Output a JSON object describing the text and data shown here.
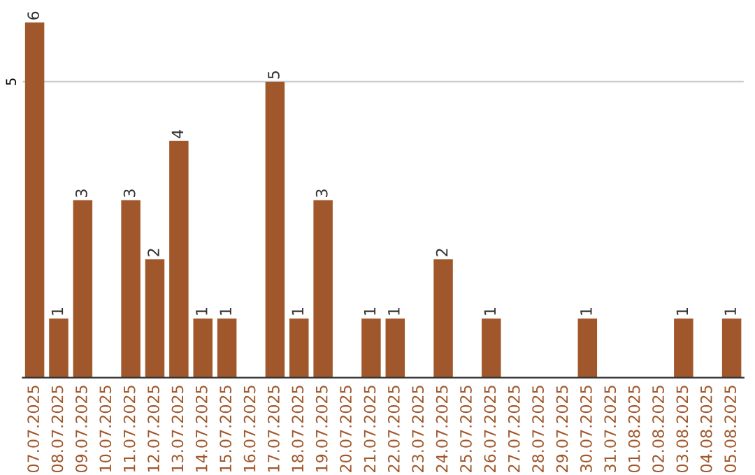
{
  "chart_data": {
    "type": "bar",
    "categories": [
      "07.07.2025",
      "08.07.2025",
      "09.07.2025",
      "10.07.2025",
      "11.07.2025",
      "12.07.2025",
      "13.07.2025",
      "14.07.2025",
      "15.07.2025",
      "16.07.2025",
      "17.07.2025",
      "18.07.2025",
      "19.07.2025",
      "20.07.2025",
      "21.07.2025",
      "22.07.2025",
      "23.07.2025",
      "24.07.2025",
      "25.07.2025",
      "26.07.2025",
      "27.07.2025",
      "28.07.2025",
      "29.07.2025",
      "30.07.2025",
      "31.07.2025",
      "01.08.2025",
      "02.08.2025",
      "03.08.2025",
      "04.08.2025",
      "05.08.2025"
    ],
    "values": [
      6,
      1,
      3,
      null,
      3,
      2,
      4,
      1,
      1,
      null,
      5,
      1,
      3,
      null,
      1,
      1,
      null,
      2,
      null,
      1,
      null,
      null,
      null,
      1,
      null,
      null,
      null,
      1,
      null,
      1
    ],
    "color": "#a0572b",
    "ref_lines": [
      {
        "axis": "y",
        "value": 5,
        "label": "5",
        "color": "#cccccc"
      }
    ],
    "data_labels": true
  }
}
